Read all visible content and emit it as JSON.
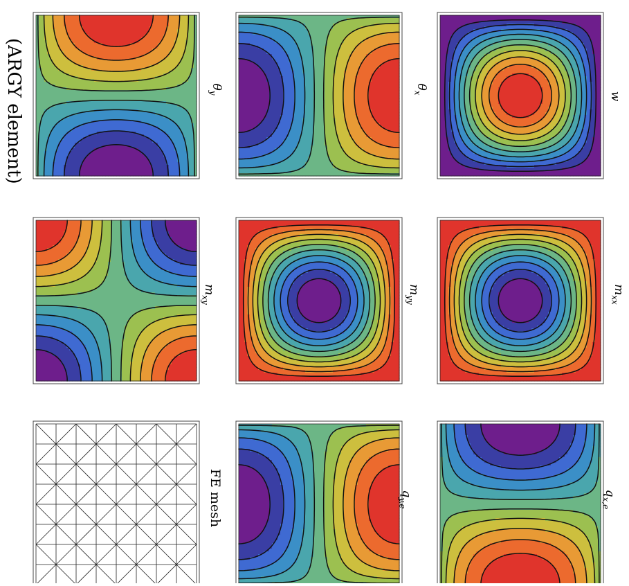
{
  "figure": {
    "side_label": "(ARGY element)",
    "palette": [
      "#6e1e8c",
      "#3a3ea4",
      "#3f6ad2",
      "#3b8fc7",
      "#4aa6ad",
      "#6cb686",
      "#9cc050",
      "#cdbf3e",
      "#e89a35",
      "#ec6a2e",
      "#e0342c"
    ],
    "panels": [
      {
        "id": "w",
        "label": "w",
        "sub": "",
        "field": "w"
      },
      {
        "id": "thx",
        "label": "θ",
        "sub": "x",
        "field": "thetax"
      },
      {
        "id": "thy",
        "label": "θ",
        "sub": "y",
        "field": "thetay"
      },
      {
        "id": "mxx",
        "label": "m",
        "sub": "xx",
        "field": "mxx"
      },
      {
        "id": "myy",
        "label": "m",
        "sub": "yy",
        "field": "myy"
      },
      {
        "id": "mxy",
        "label": "m",
        "sub": "xy",
        "field": "mxy"
      },
      {
        "id": "qxe",
        "label": "q",
        "sub": "x,e",
        "field": "qx"
      },
      {
        "id": "qye",
        "label": "q",
        "sub": "y,e",
        "field": "qy"
      },
      {
        "id": "mesh",
        "label": "FE mesh",
        "sub": "",
        "field": "mesh"
      }
    ]
  }
}
